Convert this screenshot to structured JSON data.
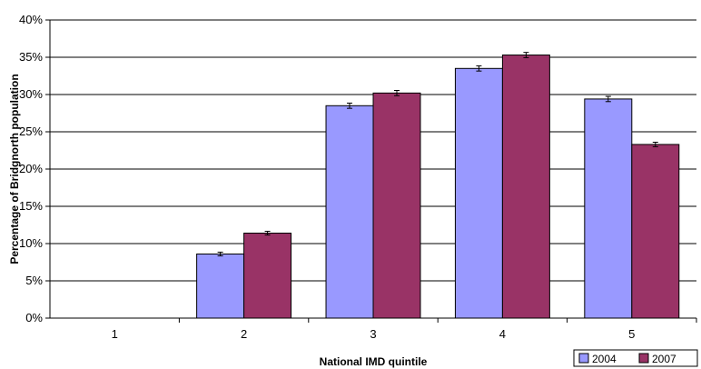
{
  "chart_data": {
    "type": "bar",
    "categories": [
      "1",
      "2",
      "3",
      "4",
      "5"
    ],
    "series": [
      {
        "name": "2004",
        "color": "#9999ff",
        "values": [
          0,
          8.6,
          28.5,
          33.5,
          29.4
        ],
        "error": [
          0.0,
          0.25,
          0.35,
          0.35,
          0.35
        ]
      },
      {
        "name": "2007",
        "color": "#993366",
        "values": [
          0,
          11.4,
          30.2,
          35.3,
          23.3
        ],
        "error": [
          0.0,
          0.25,
          0.35,
          0.35,
          0.3
        ]
      }
    ],
    "xlabel": "National IMD quintile",
    "ylabel": "Percentage of Bridgnorth population",
    "ylim": [
      0,
      40
    ],
    "yticks": [
      "0%",
      "5%",
      "10%",
      "15%",
      "20%",
      "25%",
      "30%",
      "35%",
      "40%"
    ],
    "grid": true,
    "legend_position": "bottom-right"
  }
}
